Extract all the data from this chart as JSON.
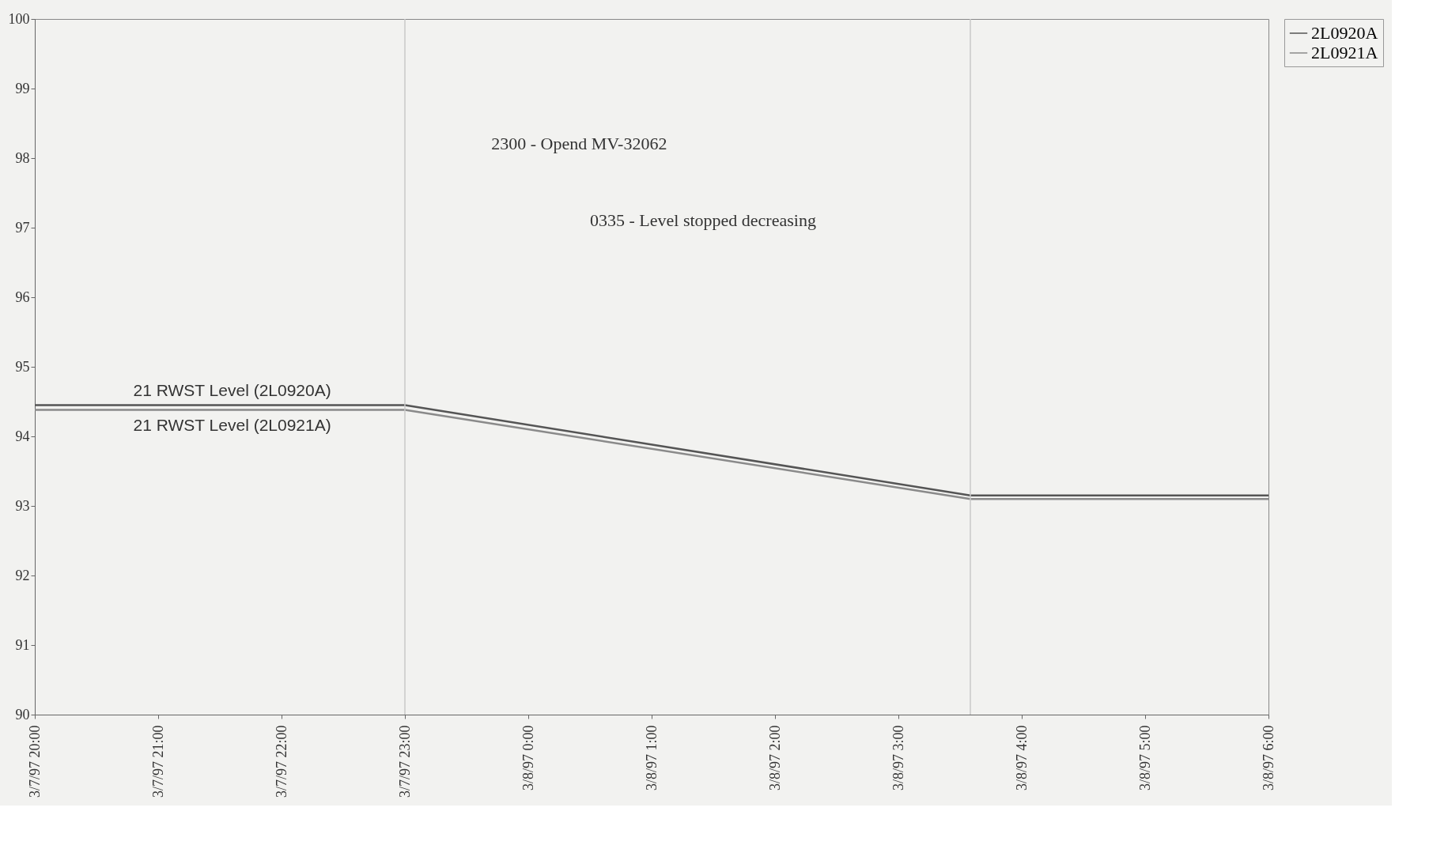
{
  "chart_data": {
    "type": "line",
    "x": [
      "1997-03-07T20:00",
      "1997-03-07T23:00",
      "1997-03-08T03:35",
      "1997-03-08T06:00"
    ],
    "series": [
      {
        "name": "2L0920A",
        "color": "#555555",
        "values": [
          94.45,
          94.45,
          93.15,
          93.15
        ]
      },
      {
        "name": "2L0921A",
        "color": "#8a8a8a",
        "values": [
          94.38,
          94.38,
          93.1,
          93.1
        ]
      }
    ],
    "ylim": [
      90,
      100
    ],
    "yticks": [
      90,
      91,
      92,
      93,
      94,
      95,
      96,
      97,
      98,
      99,
      100
    ],
    "xlim": [
      "1997-03-07T20:00",
      "1997-03-08T06:00"
    ],
    "xticks": [
      {
        "value": "1997-03-07T20:00",
        "label": "3/7/97 20:00"
      },
      {
        "value": "1997-03-07T21:00",
        "label": "3/7/97 21:00"
      },
      {
        "value": "1997-03-07T22:00",
        "label": "3/7/97 22:00"
      },
      {
        "value": "1997-03-07T23:00",
        "label": "3/7/97 23:00"
      },
      {
        "value": "1997-03-08T00:00",
        "label": "3/8/97 0:00"
      },
      {
        "value": "1997-03-08T01:00",
        "label": "3/8/97 1:00"
      },
      {
        "value": "1997-03-08T02:00",
        "label": "3/8/97 2:00"
      },
      {
        "value": "1997-03-08T03:00",
        "label": "3/8/97 3:00"
      },
      {
        "value": "1997-03-08T04:00",
        "label": "3/8/97 4:00"
      },
      {
        "value": "1997-03-08T05:00",
        "label": "3/8/97 5:00"
      },
      {
        "value": "1997-03-08T06:00",
        "label": "3/8/97 6:00"
      }
    ],
    "ref_lines": [
      {
        "axis": "x",
        "value": "1997-03-07T23:00",
        "color": "#c8c8c8"
      },
      {
        "axis": "x",
        "value": "1997-03-08T03:35",
        "color": "#c8c8c8"
      }
    ],
    "annotations": [
      "2300 - Opend MV-32062",
      "0335 - Level stopped decreasing",
      "21 RWST Level (2L0920A)",
      "21 RWST Level (2L0921A)"
    ],
    "grid": false,
    "legend": "right",
    "marker": "none",
    "line_style": "solid"
  }
}
